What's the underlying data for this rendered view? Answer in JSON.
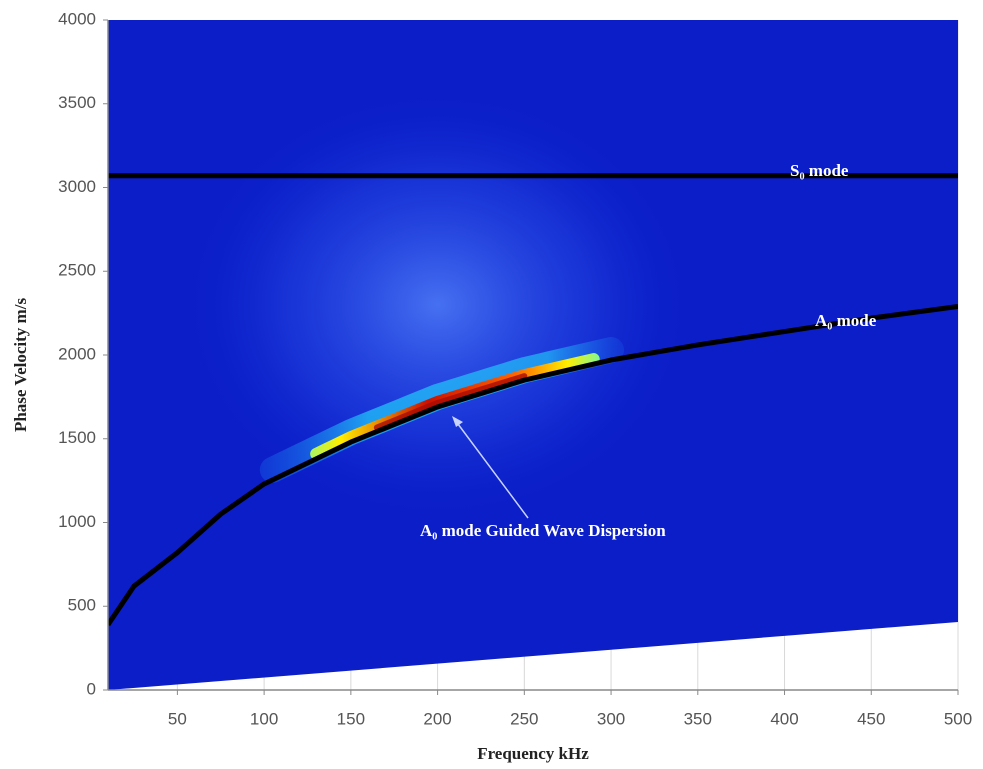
{
  "chart_data": {
    "type": "line",
    "x_label": "Frequency kHz",
    "y_label": "Phase Velocity m/s",
    "xlim": [
      10,
      500
    ],
    "xticks": [
      50,
      100,
      150,
      200,
      250,
      300,
      350,
      400,
      450,
      500
    ],
    "ylim": [
      0,
      4000
    ],
    "yticks": [
      0,
      500,
      1000,
      1500,
      2000,
      2500,
      3000,
      3500,
      4000
    ],
    "grid": true,
    "background_color": "#0b1ec8",
    "lower_boundary": {
      "x": [
        10,
        500
      ],
      "values": [
        0,
        406
      ]
    },
    "series": [
      {
        "name": "S₀ mode",
        "color": "#000000",
        "x": [
          10,
          500
        ],
        "values": [
          3070,
          3070
        ]
      },
      {
        "name": "A₀ mode",
        "color": "#000000",
        "x": [
          10,
          25,
          50,
          75,
          100,
          150,
          200,
          250,
          300,
          350,
          400,
          450,
          500
        ],
        "values": [
          390,
          620,
          820,
          1050,
          1230,
          1480,
          1690,
          1850,
          1970,
          2060,
          2140,
          2220,
          2290
        ]
      }
    ],
    "annotations": [
      "A₀ mode Guided Wave Dispersion"
    ]
  }
}
